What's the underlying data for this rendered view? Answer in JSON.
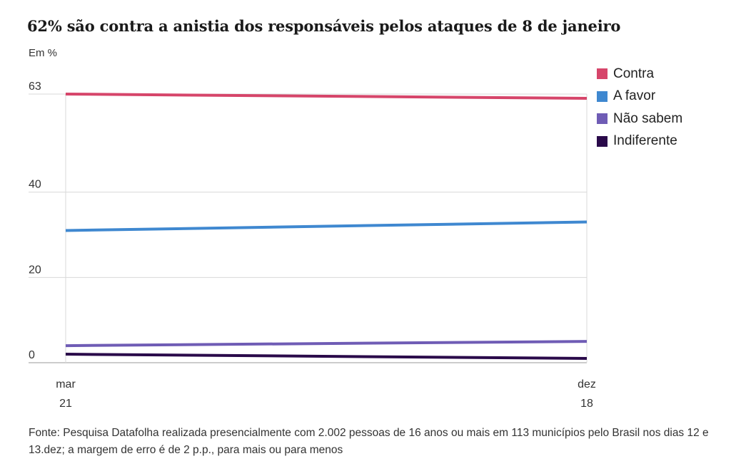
{
  "title": "62% são contra a anistia dos responsáveis pelos ataques de 8 de janeiro",
  "unit_label": "Em %",
  "source": "Fonte: Pesquisa Datafolha realizada presencialmente com 2.002 pessoas de 16 anos ou mais em 113 municípios pelo Brasil nos dias 12 e 13.dez; a margem de erro é de 2 p.p., para mais ou para menos",
  "chart_data": {
    "type": "line",
    "x": [
      0,
      1
    ],
    "x_tick_labels": [
      [
        "mar",
        "21"
      ],
      [
        "dez",
        "18"
      ]
    ],
    "y_ticks": [
      0,
      20,
      40,
      63
    ],
    "ylim": [
      0,
      63
    ],
    "grid": true,
    "legend_position": "top-right",
    "series": [
      {
        "name": "Contra",
        "color": "#d6456a",
        "values": [
          63,
          62
        ]
      },
      {
        "name": "A favor",
        "color": "#3f88d0",
        "values": [
          31,
          33
        ]
      },
      {
        "name": "Não sabem",
        "color": "#6f5cb5",
        "values": [
          4,
          5
        ]
      },
      {
        "name": "Indiferente",
        "color": "#2a0a4a",
        "values": [
          2,
          1
        ]
      }
    ]
  }
}
